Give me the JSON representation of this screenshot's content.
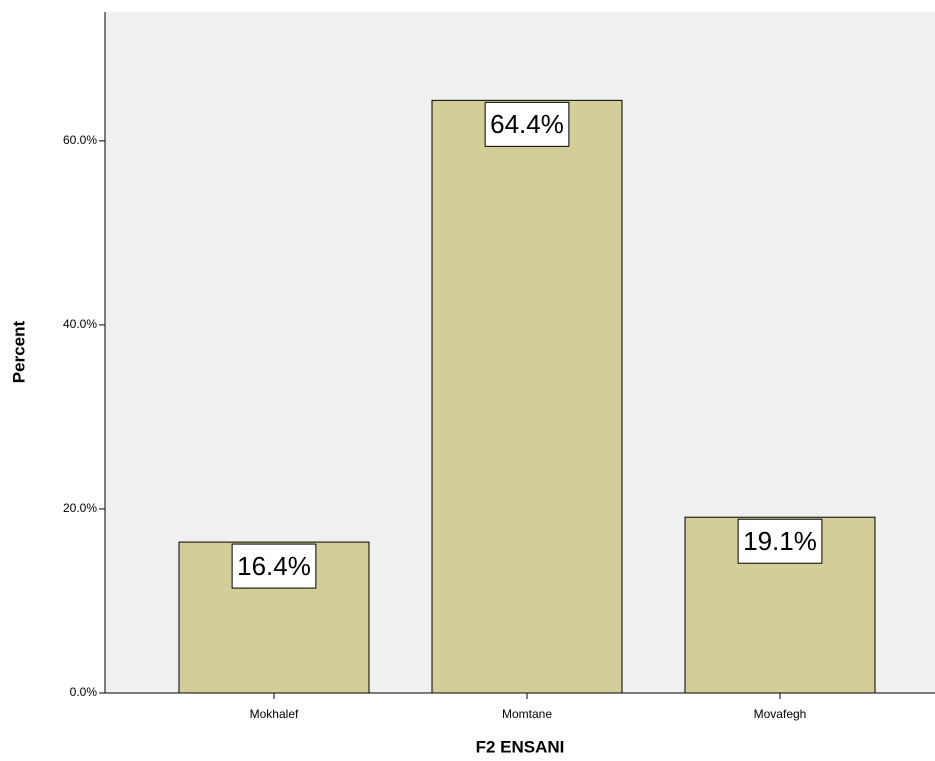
{
  "chart_data": {
    "type": "bar",
    "x_label": "F2 ENSANI",
    "y_label": "Percent",
    "categories": [
      "Mokhalef",
      "Momtane",
      "Movafegh"
    ],
    "values": [
      16.4,
      64.4,
      19.1
    ],
    "value_labels": [
      "16.4%",
      "64.4%",
      "19.1%"
    ],
    "color": "#d3ce97",
    "ylim": [
      0,
      74
    ],
    "yticks": [
      {
        "value": 0,
        "label": "0.0%"
      },
      {
        "value": 20,
        "label": "20.0%"
      },
      {
        "value": 40,
        "label": "40.0%"
      },
      {
        "value": 60,
        "label": "60.0%"
      }
    ],
    "grid": false
  }
}
